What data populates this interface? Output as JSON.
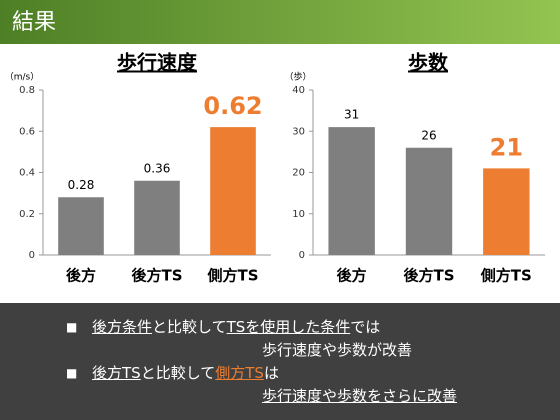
{
  "header": {
    "title": "結果"
  },
  "chart_data": [
    {
      "type": "bar",
      "title": "歩行速度",
      "ylabel": "（m/s）",
      "categories": [
        "後方",
        "後方TS",
        "側方TS"
      ],
      "values": [
        0.28,
        0.36,
        0.62
      ],
      "colors": [
        "#7f7f7f",
        "#7f7f7f",
        "#ed7d31"
      ],
      "ylim": [
        0,
        0.8
      ],
      "yticks": [
        0,
        0.2,
        0.4,
        0.6,
        0.8
      ],
      "grid": false
    },
    {
      "type": "bar",
      "title": "歩数",
      "ylabel": "（歩）",
      "categories": [
        "後方",
        "後方TS",
        "側方TS"
      ],
      "values": [
        31,
        26,
        21
      ],
      "colors": [
        "#7f7f7f",
        "#7f7f7f",
        "#ed7d31"
      ],
      "ylim": [
        0,
        40
      ],
      "yticks": [
        0,
        10,
        20,
        30,
        40
      ],
      "grid": false
    }
  ],
  "bullets": [
    {
      "segments": [
        "後方条件",
        "と比較して",
        "TSを使用した条件",
        "では"
      ],
      "continuation": "歩行速度や歩数が改善"
    },
    {
      "segments": [
        "後方TS",
        "と比較して",
        "側方TS",
        "は"
      ],
      "continuation": "歩行速度や歩数をさらに改善"
    }
  ]
}
